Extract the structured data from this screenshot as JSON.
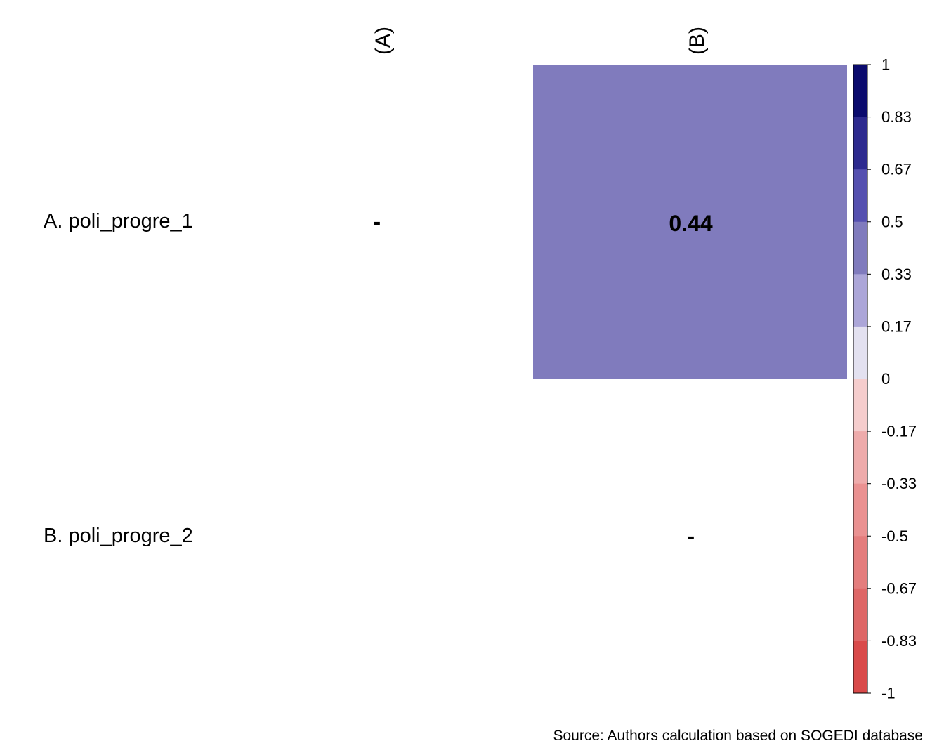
{
  "chart_data": {
    "type": "heatmap",
    "columns": [
      "(A)",
      "(B)"
    ],
    "rows": [
      "A. poli_progre_1",
      "B. poli_progre_2"
    ],
    "cells": [
      [
        {
          "row": "A. poli_progre_1",
          "col": "(A)",
          "value": null,
          "label": "-"
        },
        {
          "row": "A. poli_progre_1",
          "col": "(B)",
          "value": 0.44,
          "label": "0.44"
        }
      ],
      [
        {
          "row": "B. poli_progre_2",
          "col": "(A)",
          "value": null,
          "label": ""
        },
        {
          "row": "B. poli_progre_2",
          "col": "(B)",
          "value": null,
          "label": "-"
        }
      ]
    ],
    "colorbar": {
      "min": -1,
      "max": 1,
      "ticks": [
        "1",
        "0.83",
        "0.67",
        "0.5",
        "0.33",
        "0.17",
        "0",
        "-0.17",
        "-0.33",
        "-0.5",
        "-0.67",
        "-0.83",
        "-1"
      ],
      "bins_top_to_bottom": [
        "#0b0b6e",
        "#2d2a8f",
        "#5550b0",
        "#807bbd",
        "#aca6d8",
        "#e3e1f0",
        "#fbecec",
        "#f5cdcd",
        "#eeabab",
        "#ea9191",
        "#e47d7d",
        "#de6767",
        "#d94a4a"
      ]
    },
    "cell_color": "#807bbd",
    "caption": "Source: Authors calculation based on SOGEDI database"
  }
}
